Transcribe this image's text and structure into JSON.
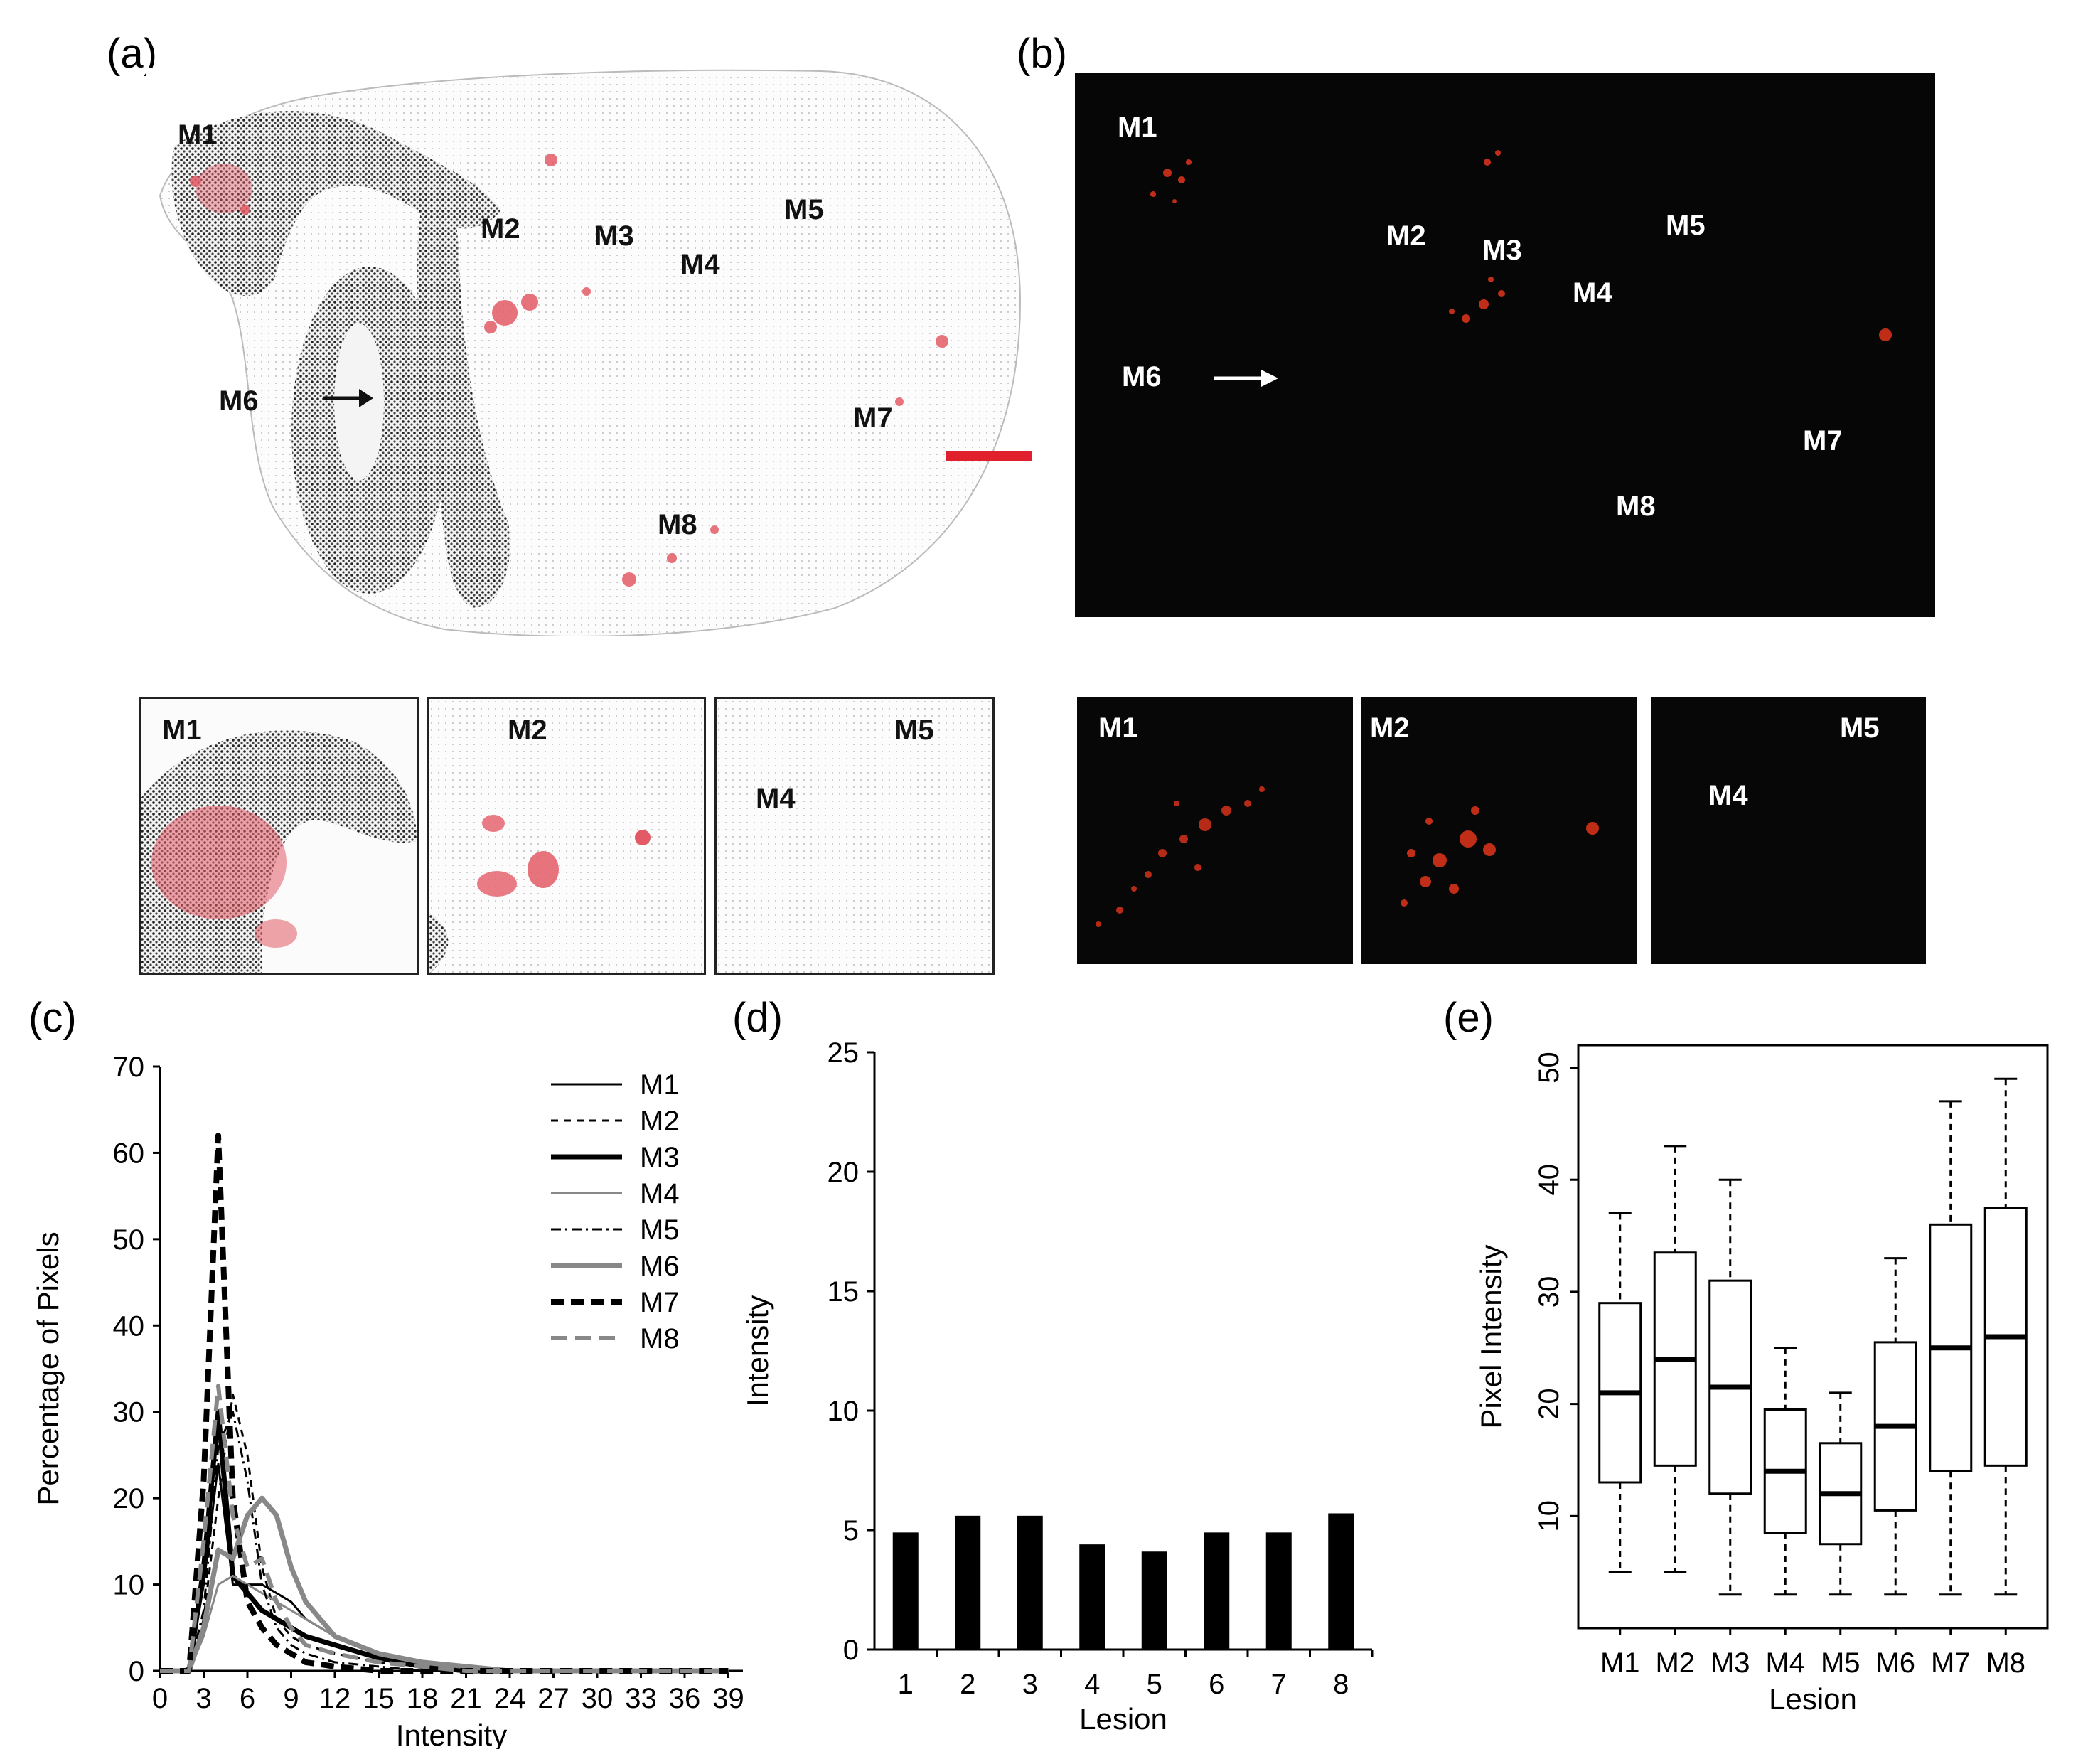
{
  "panels": {
    "a": {
      "letter": "(a)",
      "labels": [
        "M1",
        "M2",
        "M3",
        "M4",
        "M5",
        "M6",
        "M7",
        "M8"
      ],
      "insets": [
        {
          "labels": [
            "M1"
          ]
        },
        {
          "labels": [
            "M2"
          ]
        },
        {
          "labels": [
            "M5",
            "M4"
          ]
        }
      ],
      "scale_bar_color": "#e0212d",
      "tissue_stain_color": "#e35a66"
    },
    "b": {
      "letter": "(b)",
      "labels": [
        "M1",
        "M2",
        "M3",
        "M4",
        "M5",
        "M6",
        "M7",
        "M8"
      ],
      "insets": [
        {
          "labels": [
            "M1"
          ]
        },
        {
          "labels": [
            "M2"
          ]
        },
        {
          "labels": [
            "M5",
            "M4"
          ]
        }
      ],
      "signal_color": "#ff3b1e"
    },
    "c": {
      "letter": "(c)"
    },
    "d": {
      "letter": "(d)"
    },
    "e": {
      "letter": "(e)"
    }
  },
  "chart_data": [
    {
      "id": "c",
      "type": "line",
      "xlabel": "Intensity",
      "ylabel": "Percentage of Pixels",
      "ylim": [
        0,
        70
      ],
      "yticks": [
        0,
        10,
        20,
        30,
        40,
        50,
        60,
        70
      ],
      "xlim": [
        0,
        40
      ],
      "xticks": [
        0,
        3,
        6,
        9,
        12,
        15,
        18,
        21,
        24,
        27,
        30,
        33,
        36,
        39
      ],
      "legend_position": "top-right",
      "series": [
        {
          "name": "M1",
          "style": "thin-solid-black",
          "x": [
            0,
            2,
            3,
            4,
            5,
            6,
            7,
            8,
            9,
            10,
            12,
            15,
            18,
            21,
            24,
            30,
            39
          ],
          "y": [
            0,
            0,
            10,
            24,
            10,
            10,
            10,
            9,
            8,
            6,
            4,
            2,
            1,
            0.5,
            0,
            0,
            0
          ]
        },
        {
          "name": "M2",
          "style": "thin-dashed-black",
          "x": [
            0,
            2,
            3,
            4,
            5,
            6,
            7,
            8,
            9,
            10,
            12,
            15,
            18,
            21,
            24,
            30,
            39
          ],
          "y": [
            0,
            0,
            6,
            20,
            32,
            25,
            12,
            6,
            4,
            3,
            2,
            1,
            0.5,
            0,
            0,
            0,
            0
          ]
        },
        {
          "name": "M3",
          "style": "thick-solid-black",
          "x": [
            0,
            2,
            3,
            4,
            5,
            6,
            7,
            8,
            9,
            10,
            12,
            15,
            18,
            21,
            24,
            30,
            39
          ],
          "y": [
            0,
            0,
            12,
            30,
            11,
            9,
            7,
            6,
            5,
            4,
            3,
            1.5,
            0.5,
            0,
            0,
            0,
            0
          ]
        },
        {
          "name": "M4",
          "style": "thin-solid-gray",
          "x": [
            0,
            2,
            3,
            4,
            5,
            6,
            7,
            8,
            9,
            10,
            12,
            15,
            18,
            21,
            24,
            30,
            39
          ],
          "y": [
            0,
            0,
            4,
            10,
            11,
            10,
            9,
            8,
            7,
            6,
            4,
            2,
            1,
            0.5,
            0,
            0,
            0
          ]
        },
        {
          "name": "M5",
          "style": "dash-dot-black",
          "x": [
            0,
            2,
            3,
            4,
            5,
            6,
            7,
            8,
            9,
            10,
            12,
            15,
            18,
            21,
            24,
            30,
            39
          ],
          "y": [
            0,
            0,
            7,
            26,
            30,
            22,
            10,
            5,
            3,
            2,
            1,
            0.5,
            0,
            0,
            0,
            0,
            0
          ]
        },
        {
          "name": "M6",
          "style": "thick-solid-gray",
          "x": [
            0,
            2,
            3,
            4,
            5,
            6,
            7,
            8,
            9,
            10,
            12,
            15,
            18,
            21,
            24,
            30,
            39
          ],
          "y": [
            0,
            0,
            5,
            14,
            13,
            18,
            20,
            18,
            12,
            8,
            4,
            2,
            1,
            0.5,
            0,
            0,
            0
          ]
        },
        {
          "name": "M7",
          "style": "thick-dashed-black",
          "x": [
            0,
            2,
            3,
            4,
            5,
            6,
            7,
            8,
            9,
            10,
            12,
            15,
            18,
            21,
            24,
            30,
            39
          ],
          "y": [
            0,
            0,
            22,
            62,
            20,
            8,
            5,
            3,
            2,
            1,
            0.5,
            0,
            0,
            0,
            0,
            0,
            0
          ]
        },
        {
          "name": "M8",
          "style": "thick-dashed-gray",
          "x": [
            0,
            2,
            3,
            4,
            5,
            6,
            7,
            8,
            9,
            10,
            12,
            15,
            18,
            21,
            24,
            30,
            39
          ],
          "y": [
            0,
            0,
            15,
            33,
            18,
            12,
            13,
            8,
            5,
            3,
            2,
            1,
            0.5,
            0,
            0,
            0,
            0
          ]
        }
      ]
    },
    {
      "id": "d",
      "type": "bar",
      "xlabel": "Lesion",
      "ylabel": "Intensity",
      "ylim": [
        0,
        25
      ],
      "yticks": [
        0,
        5,
        10,
        15,
        20,
        25
      ],
      "categories": [
        "1",
        "2",
        "3",
        "4",
        "5",
        "6",
        "7",
        "8"
      ],
      "values": [
        4.9,
        5.6,
        5.6,
        4.4,
        4.1,
        4.9,
        4.9,
        5.7
      ]
    },
    {
      "id": "e",
      "type": "box",
      "xlabel": "Lesion",
      "ylabel": "Pixel Intensity",
      "ylim": [
        0,
        52
      ],
      "yticks": [
        10,
        20,
        30,
        40,
        50
      ],
      "categories": [
        "M1",
        "M2",
        "M3",
        "M4",
        "M5",
        "M6",
        "M7",
        "M8"
      ],
      "boxes": [
        {
          "min": 5,
          "q1": 13,
          "median": 21,
          "q3": 29,
          "max": 37
        },
        {
          "min": 5,
          "q1": 14.5,
          "median": 24,
          "q3": 33.5,
          "max": 43
        },
        {
          "min": 3,
          "q1": 12,
          "median": 21.5,
          "q3": 31,
          "max": 40
        },
        {
          "min": 3,
          "q1": 8.5,
          "median": 14,
          "q3": 19.5,
          "max": 25
        },
        {
          "min": 3,
          "q1": 7.5,
          "median": 12,
          "q3": 16.5,
          "max": 21
        },
        {
          "min": 3,
          "q1": 10.5,
          "median": 18,
          "q3": 25.5,
          "max": 33
        },
        {
          "min": 3,
          "q1": 14,
          "median": 25,
          "q3": 36,
          "max": 47
        },
        {
          "min": 3,
          "q1": 14.5,
          "median": 26,
          "q3": 37.5,
          "max": 49
        }
      ]
    }
  ]
}
